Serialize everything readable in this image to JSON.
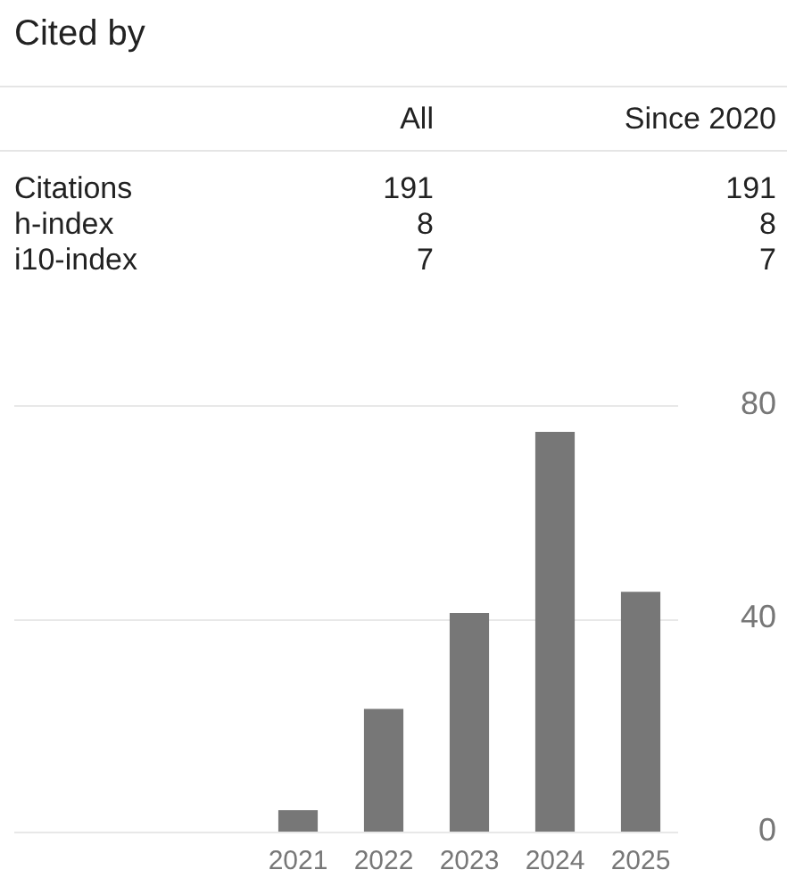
{
  "chart_data": {
    "type": "bar",
    "title": "Cited by",
    "annotations": [
      "All",
      "Since 2020",
      "Citations",
      "191",
      "191",
      "h-index",
      "8",
      "8",
      "i10-index",
      "7",
      "7"
    ],
    "categories": [
      "2021",
      "2022",
      "2023",
      "2024",
      "2025"
    ],
    "values": [
      4,
      23,
      41,
      75,
      45
    ],
    "color": "#777777",
    "ylim": [
      0,
      80
    ],
    "yticks": [
      0,
      40,
      80
    ],
    "grid": "y"
  }
}
